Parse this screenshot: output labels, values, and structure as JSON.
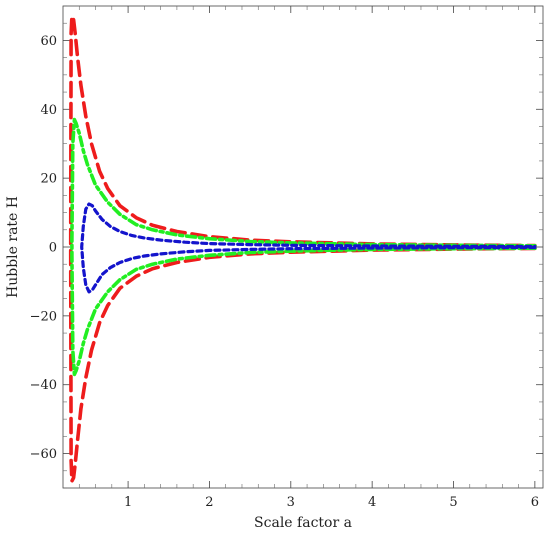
{
  "chart_data": {
    "type": "line",
    "title": "",
    "xlabel": "Scale factor a",
    "ylabel": "Hubble rate H",
    "xlim": [
      0.2,
      6.1
    ],
    "ylim": [
      -70,
      70
    ],
    "grid": false,
    "x_ticks": [
      1,
      2,
      3,
      4,
      5,
      6
    ],
    "y_ticks": [
      -60,
      -40,
      -20,
      0,
      20,
      40,
      60
    ],
    "y_minor_step": 5,
    "x_minor_step": 0.2,
    "colors": {
      "red": "#ee1c1c",
      "green": "#22ee22",
      "blue": "#1414cc"
    },
    "series": [
      {
        "color": "#ee1c1c",
        "dash": "long-dash",
        "x": [
          0.295,
          0.3,
          0.31,
          0.33,
          0.35,
          0.38,
          0.42,
          0.48,
          0.55,
          0.65,
          0.75,
          0.9,
          1.1,
          1.3,
          1.6,
          2.0,
          2.5,
          3.0,
          4.0,
          5.0,
          6.0
        ],
        "upper": [
          2,
          62,
          67,
          66,
          62,
          55,
          47,
          38,
          30,
          22,
          17,
          12,
          8.5,
          6.3,
          4.5,
          3.0,
          2.0,
          1.5,
          0.9,
          0.6,
          0.4
        ],
        "lower": [
          -2,
          -62,
          -68,
          -67,
          -63,
          -56,
          -47,
          -38,
          -30,
          -22,
          -17,
          -12,
          -8.5,
          -6.3,
          -4.5,
          -3.0,
          -2.0,
          -1.5,
          -0.9,
          -0.6,
          -0.4
        ]
      },
      {
        "color": "#22ee22",
        "dash": "dash-dot",
        "x": [
          0.31,
          0.32,
          0.34,
          0.36,
          0.4,
          0.45,
          0.5,
          0.6,
          0.75,
          0.9,
          1.1,
          1.3,
          1.6,
          2.0,
          2.5,
          3.0,
          4.0,
          5.0,
          6.0
        ],
        "upper": [
          2,
          30,
          37,
          36,
          33,
          28,
          24,
          18,
          13,
          9.5,
          6.5,
          5.0,
          3.5,
          2.4,
          1.6,
          1.2,
          0.7,
          0.5,
          0.35
        ],
        "lower": [
          -2,
          -30,
          -37,
          -36,
          -33,
          -28,
          -24,
          -18,
          -13,
          -9.5,
          -6.5,
          -5.0,
          -3.5,
          -2.4,
          -1.6,
          -1.2,
          -0.7,
          -0.5,
          -0.35
        ]
      },
      {
        "color": "#1414cc",
        "dash": "dot",
        "x": [
          0.43,
          0.45,
          0.48,
          0.52,
          0.56,
          0.6,
          0.68,
          0.78,
          0.9,
          1.05,
          1.2,
          1.4,
          1.7,
          2.0,
          2.5,
          3.0,
          4.0,
          5.0,
          6.0
        ],
        "upper": [
          0,
          6,
          11,
          12.5,
          12,
          10.5,
          8,
          6,
          4.5,
          3.3,
          2.6,
          2.0,
          1.4,
          1.0,
          0.7,
          0.5,
          0.3,
          0.2,
          0.15
        ],
        "lower": [
          0,
          -6,
          -11,
          -13,
          -12.5,
          -11,
          -8,
          -6,
          -4.5,
          -3.3,
          -2.6,
          -2.0,
          -1.4,
          -1.0,
          -0.7,
          -0.5,
          -0.3,
          -0.2,
          -0.15
        ]
      }
    ]
  }
}
